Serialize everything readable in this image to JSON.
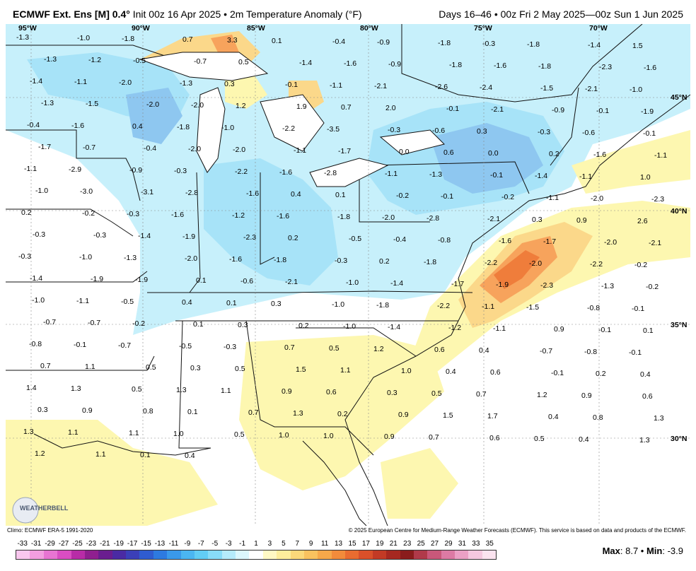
{
  "header": {
    "model": "ECMWF Ext. Ens [M] 0.4",
    "degree": "°",
    "init": "Init 00z 16 Apr 2025",
    "sep": "•",
    "field": "2m Temperature Anomaly (°F)",
    "period": "Days 16–46 • 00z Fri 2 May 2025—00z Sun 1 Jun 2025"
  },
  "map": {
    "longitude_labels": [
      "95°W",
      "90°W",
      "85°W",
      "80°W",
      "75°W",
      "70°W"
    ],
    "latitude_labels": [
      "45°N",
      "40°N",
      "35°N",
      "30°N"
    ],
    "logo_text": "WEATHERBELL",
    "colors": {
      "land_neutral": "#ffffff",
      "cool_light": "#c7f0fb",
      "cool_mid": "#a7e3f8",
      "cool_deep": "#8ec7f0",
      "warm_light": "#fdf7b0",
      "warm_mid": "#fbd88a",
      "warm_strong": "#f7a35c",
      "warm_hot": "#ef7d3b",
      "ocean_light": "#dff4fb"
    },
    "grid_values": [
      "-1.3",
      "-1.0",
      "-1.8",
      "0.7",
      "3.3",
      "0.1",
      "-0.4",
      "-0.9",
      "-1.8",
      "-0.3",
      "-1.8",
      "-1.4",
      "1.5",
      "-1.3",
      "-1.2",
      "-0.5",
      "-0.7",
      "0.5",
      "-1.4",
      "-1.6",
      "-0.9",
      "-1.8",
      "-1.6",
      "-1.8",
      "-2.3",
      "-1.6",
      "-1.4",
      "-1.1",
      "-2.0",
      "-1.3",
      "0.3",
      "-0.1",
      "-1.1",
      "-2.1",
      "-2.6",
      "-2.4",
      "-1.5",
      "-2.1",
      "-1.0",
      "-1.3",
      "-1.5",
      "-2.0",
      "-2.0",
      "1.2",
      "1.9",
      "0.7",
      "2.0",
      "-0.1",
      "-2.1",
      "-0.9",
      "-0.1",
      "-1.9",
      "-0.4",
      "-1.6",
      "0.4",
      "-1.8",
      "-1.0",
      "-2.2",
      "-3.5",
      "-0.3",
      "-0.6",
      "0.3",
      "-0.3",
      "-0.6",
      "-0.1",
      "-1.7",
      "-0.7",
      "-0.4",
      "-2.0",
      "-2.0",
      "-1.1",
      "-1.7",
      "0.0",
      "0.6",
      "0.0",
      "0.2",
      "-1.6",
      "-1.1",
      "-1.1",
      "-2.9",
      "-0.9",
      "-0.3",
      "-2.2",
      "-1.6",
      "-2.8",
      "-1.1",
      "-1.3",
      "-0.1",
      "-1.4",
      "-1.1",
      "1.0",
      "-1.0",
      "-3.0",
      "-3.1",
      "-2.8",
      "-1.6",
      "0.4",
      "0.1",
      "-0.2",
      "-0.1",
      "-0.2",
      "-1.1",
      "-2.0",
      "-2.3",
      "0.2",
      "-0.2",
      "-0.3",
      "-1.6",
      "-1.2",
      "-1.6",
      "-1.8",
      "-2.0",
      "-2.8",
      "-2.1",
      "0.3",
      "0.9",
      "2.6",
      "-0.3",
      "-0.3",
      "-1.4",
      "-1.9",
      "-2.3",
      "0.2",
      "-0.5",
      "-0.4",
      "-0.8",
      "-1.6",
      "-1.7",
      "-2.0",
      "-2.1",
      "-0.3",
      "-1.0",
      "-1.3",
      "-2.0",
      "-1.6",
      "-1.8",
      "-0.3",
      "0.2",
      "-1.8",
      "-2.2",
      "-2.0",
      "-2.2",
      "-0.2",
      "-1.4",
      "-1.9",
      "-1.9",
      "0.1",
      "-0.6",
      "-2.1",
      "-1.0",
      "-1.4",
      "-1.7",
      "-1.9",
      "-2.3",
      "-1.3",
      "-0.2",
      "-1.0",
      "-1.1",
      "-0.5",
      "0.4",
      "0.1",
      "0.3",
      "-1.0",
      "-1.8",
      "-2.2",
      "-1.1",
      "-1.5",
      "-0.8",
      "-0.1",
      "-0.7",
      "-0.7",
      "-0.2",
      "0.1",
      "0.3",
      "0.2",
      "-1.0",
      "-1.4",
      "-1.2",
      "-1.1",
      "0.9",
      "-0.1",
      "0.1",
      "-0.8",
      "-0.1",
      "-0.7",
      "-0.5",
      "-0.3",
      "0.7",
      "0.5",
      "1.2",
      "0.6",
      "0.4",
      "-0.7",
      "-0.8",
      "-0.1",
      "0.7",
      "1.1",
      "0.5",
      "0.3",
      "0.5",
      "1.5",
      "1.1",
      "1.0",
      "0.4",
      "0.6",
      "-0.1",
      "0.2",
      "0.4",
      "1.4",
      "1.3",
      "0.5",
      "1.3",
      "1.1",
      "0.9",
      "0.6",
      "0.3",
      "0.5",
      "0.7",
      "1.2",
      "0.9",
      "0.6",
      "0.3",
      "0.9",
      "0.8",
      "0.1",
      "0.7",
      "1.3",
      "0.2",
      "0.9",
      "1.5",
      "1.7",
      "0.4",
      "0.8",
      "1.3",
      "1.3",
      "1.1",
      "1.1",
      "1.0",
      "0.5",
      "1.0",
      "1.0",
      "0.9",
      "0.7",
      "0.6",
      "0.5",
      "0.4",
      "1.3",
      "1.2",
      "1.1",
      "0.1",
      "0.4"
    ]
  },
  "footer": {
    "climo": "Climo: ECMWF ERA-5 1991-2020",
    "copyright": "© 2025 European Centre for Medium-Range Weather Forecasts (ECMWF). This service is based on data and products of the ECMWF.",
    "scale_ticks": [
      "-33",
      "-31",
      "-29",
      "-27",
      "-25",
      "-23",
      "-21",
      "-19",
      "-17",
      "-15",
      "-13",
      "-11",
      "-9",
      "-7",
      "-5",
      "-3",
      "-1",
      "1",
      "3",
      "5",
      "7",
      "9",
      "11",
      "13",
      "15",
      "17",
      "19",
      "21",
      "23",
      "25",
      "27",
      "29",
      "31",
      "33",
      "35"
    ],
    "scale_colors": [
      "#f9c7ee",
      "#f39ee0",
      "#e874d2",
      "#d94dc2",
      "#b82ca7",
      "#8f1f8f",
      "#6a1d8f",
      "#4a2aa3",
      "#3b3fb8",
      "#2f5cd0",
      "#2d7ae0",
      "#3a99ea",
      "#4bb6f2",
      "#62cdf5",
      "#88dcf8",
      "#b5ebfb",
      "#dcf7fd",
      "#ffffff",
      "#fff9c4",
      "#fdee9c",
      "#fbd97a",
      "#f9c25f",
      "#f6a84a",
      "#f28b3b",
      "#e96c30",
      "#d9502a",
      "#c23a25",
      "#a62820",
      "#8a1c1c",
      "#b03a4a",
      "#c9587a",
      "#dc7aa4",
      "#eba0c5",
      "#f5c7df",
      "#fbe3ef"
    ],
    "max_label": "Max",
    "max_value": "8.7",
    "min_label": "Min",
    "min_value": "-3.9"
  }
}
